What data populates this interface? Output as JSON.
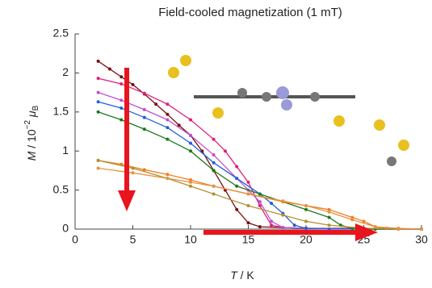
{
  "chart_data": {
    "type": "line",
    "title": "Field-cooled magnetization (1 mT)",
    "x_label": [
      "T",
      " / K"
    ],
    "y_label": [
      "M",
      " / 10",
      "−2",
      " μ",
      "B"
    ],
    "xlim": [
      0,
      30
    ],
    "xticks": [
      0,
      5,
      10,
      15,
      20,
      25,
      30
    ],
    "ylim": [
      0,
      2.5
    ],
    "yticks": [
      0,
      0.5,
      1,
      1.5,
      2,
      2.5
    ],
    "series": [
      {
        "color": "#7a1010",
        "x": [
          2,
          3,
          4,
          5,
          6,
          7,
          8,
          9,
          10,
          11,
          12,
          13,
          14,
          15,
          16,
          18,
          20,
          25,
          30
        ],
        "values": [
          2.15,
          2.05,
          1.95,
          1.85,
          1.73,
          1.6,
          1.47,
          1.33,
          1.2,
          1.0,
          0.75,
          0.5,
          0.25,
          0.08,
          0.03,
          0.02,
          0.01,
          0.01,
          0
        ]
      },
      {
        "color": "#e0207a",
        "x": [
          2,
          4,
          6,
          8,
          10,
          12,
          13,
          14,
          15,
          16,
          17,
          18,
          20,
          25,
          30
        ],
        "values": [
          1.93,
          1.86,
          1.74,
          1.6,
          1.4,
          1.15,
          1.0,
          0.8,
          0.6,
          0.3,
          0.05,
          0.02,
          0.01,
          0,
          0
        ]
      },
      {
        "color": "#c050d0",
        "x": [
          2,
          4,
          6,
          8,
          10,
          12,
          14,
          15,
          16,
          17,
          18,
          20,
          25,
          30
        ],
        "values": [
          1.75,
          1.65,
          1.53,
          1.4,
          1.2,
          0.95,
          0.65,
          0.5,
          0.35,
          0.1,
          0.02,
          0.01,
          0,
          0
        ]
      },
      {
        "color": "#2060e0",
        "x": [
          2,
          4,
          6,
          8,
          10,
          12,
          14,
          16,
          17,
          18,
          19,
          20,
          22,
          25,
          30
        ],
        "values": [
          1.63,
          1.55,
          1.43,
          1.3,
          1.1,
          0.85,
          0.65,
          0.45,
          0.33,
          0.2,
          0.05,
          0.01,
          0,
          0,
          0
        ]
      },
      {
        "color": "#1a7a1a",
        "x": [
          2,
          4,
          6,
          8,
          10,
          12,
          14,
          16,
          18,
          20,
          22,
          23,
          24,
          26,
          30
        ],
        "values": [
          1.5,
          1.4,
          1.28,
          1.15,
          1.0,
          0.75,
          0.55,
          0.45,
          0.35,
          0.25,
          0.15,
          0.05,
          0.01,
          0,
          0
        ]
      },
      {
        "color": "#f08020",
        "x": [
          2,
          4,
          6,
          8,
          10,
          12,
          15,
          18,
          20,
          22,
          24,
          25,
          26,
          27,
          28,
          30
        ],
        "values": [
          0.88,
          0.83,
          0.76,
          0.7,
          0.63,
          0.55,
          0.45,
          0.35,
          0.3,
          0.25,
          0.15,
          0.1,
          0.03,
          0.01,
          0,
          0
        ]
      },
      {
        "color": "#b09030",
        "x": [
          2,
          5,
          8,
          10,
          12,
          15,
          18,
          20,
          22,
          25,
          30
        ],
        "values": [
          0.88,
          0.78,
          0.65,
          0.55,
          0.45,
          0.3,
          0.18,
          0.1,
          0.05,
          0.01,
          0
        ]
      },
      {
        "color": "#e89040",
        "x": [
          2,
          5,
          8,
          10,
          12,
          15,
          18,
          20,
          22,
          24,
          26,
          28,
          30
        ],
        "values": [
          0.78,
          0.72,
          0.65,
          0.6,
          0.55,
          0.45,
          0.36,
          0.3,
          0.22,
          0.12,
          0.03,
          0.01,
          0
        ]
      }
    ]
  }
}
